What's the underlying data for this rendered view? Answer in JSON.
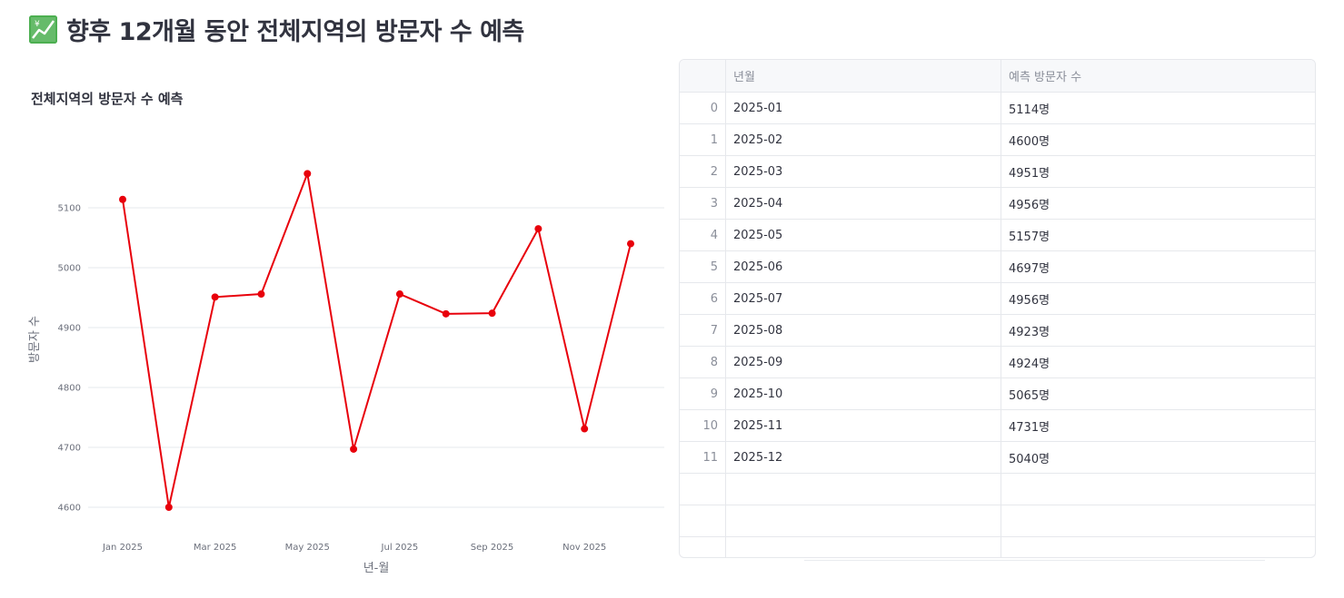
{
  "header": {
    "title": "향후 12개월 동안 전체지역의 방문자 수 예측",
    "icon": "chart-increasing-icon",
    "icon_color": "#3ea34a"
  },
  "chart_data": {
    "type": "line",
    "title": "전체지역의 방문자 수 예측",
    "xlabel": "년-월",
    "ylabel": "방문자 수",
    "x": [
      "2025-01",
      "2025-02",
      "2025-03",
      "2025-04",
      "2025-05",
      "2025-06",
      "2025-07",
      "2025-08",
      "2025-09",
      "2025-10",
      "2025-11",
      "2025-12"
    ],
    "x_tick_labels": [
      {
        "at": 0,
        "label": "Jan 2025"
      },
      {
        "at": 2,
        "label": "Mar 2025"
      },
      {
        "at": 4,
        "label": "May 2025"
      },
      {
        "at": 6,
        "label": "Jul 2025"
      },
      {
        "at": 8,
        "label": "Sep 2025"
      },
      {
        "at": 10,
        "label": "Nov 2025"
      }
    ],
    "y_ticks": [
      4600,
      4700,
      4800,
      4900,
      5000,
      5100
    ],
    "ylim": [
      4550,
      5200
    ],
    "grid": true,
    "series": [
      {
        "values": [
          5114,
          4600,
          4951,
          4956,
          5157,
          4697,
          4956,
          4923,
          4924,
          5065,
          4731,
          5040
        ],
        "color": "#e8000b"
      }
    ]
  },
  "table": {
    "columns": [
      "",
      "년월",
      "예측 방문자 수"
    ],
    "rows": [
      {
        "idx": "0",
        "month": "2025-01",
        "value": "5114명"
      },
      {
        "idx": "1",
        "month": "2025-02",
        "value": "4600명"
      },
      {
        "idx": "2",
        "month": "2025-03",
        "value": "4951명"
      },
      {
        "idx": "3",
        "month": "2025-04",
        "value": "4956명"
      },
      {
        "idx": "4",
        "month": "2025-05",
        "value": "5157명"
      },
      {
        "idx": "5",
        "month": "2025-06",
        "value": "4697명"
      },
      {
        "idx": "6",
        "month": "2025-07",
        "value": "4956명"
      },
      {
        "idx": "7",
        "month": "2025-08",
        "value": "4923명"
      },
      {
        "idx": "8",
        "month": "2025-09",
        "value": "4924명"
      },
      {
        "idx": "9",
        "month": "2025-10",
        "value": "5065명"
      },
      {
        "idx": "10",
        "month": "2025-11",
        "value": "4731명"
      },
      {
        "idx": "11",
        "month": "2025-12",
        "value": "5040명"
      }
    ],
    "empty_rows": 3
  }
}
